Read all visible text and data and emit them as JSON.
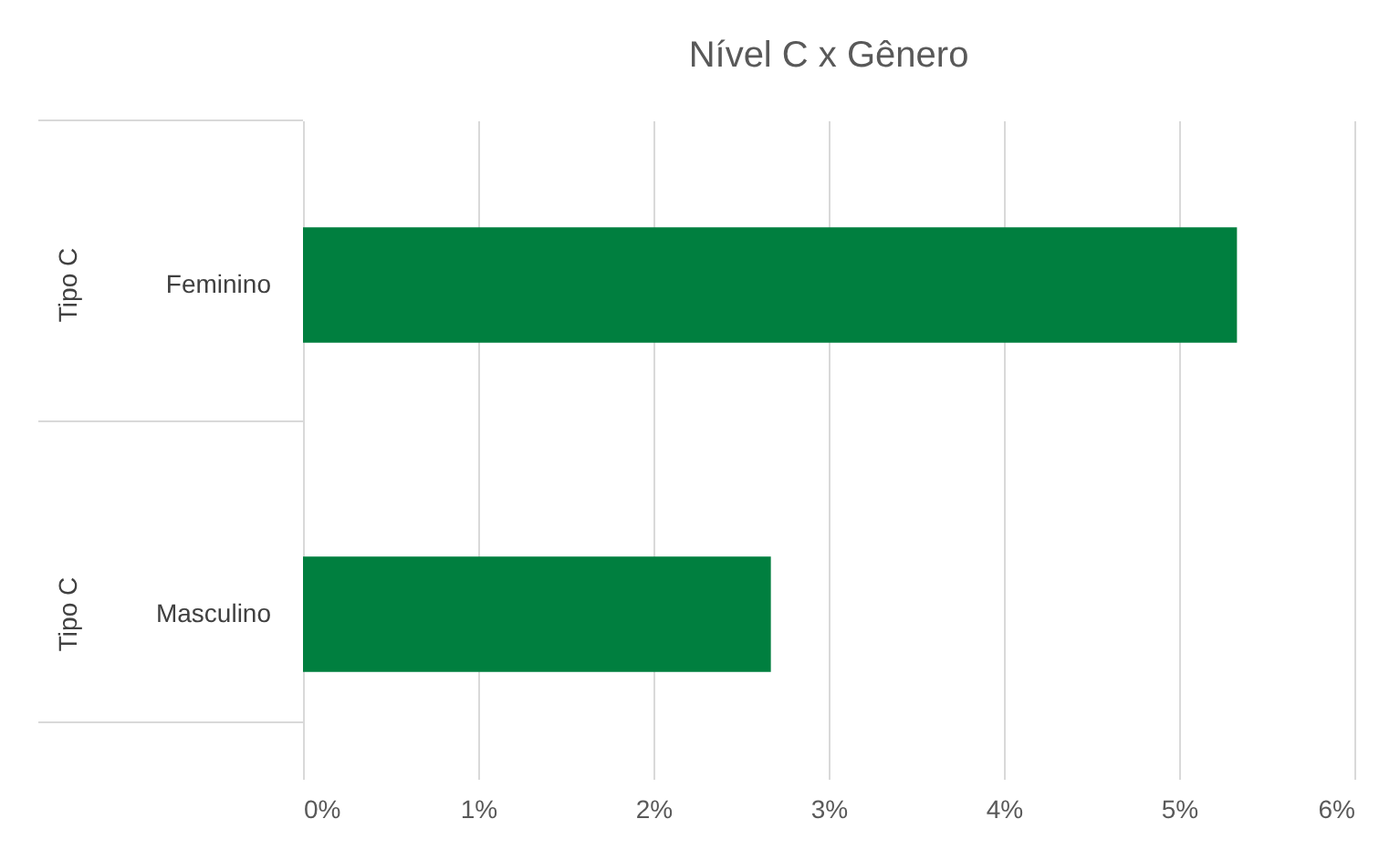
{
  "chart_data": {
    "type": "bar",
    "title": "Nível C x Gênero",
    "orientation": "horizontal",
    "categories": [
      "Feminino",
      "Masculino"
    ],
    "annotations": [
      "Tipo C",
      "Tipo C"
    ],
    "series": [
      {
        "color": "#007f3f",
        "values": [
          5.33,
          2.67
        ]
      }
    ],
    "xlim": [
      0,
      6
    ],
    "xticks": [
      {
        "value": 0,
        "label": "0%"
      },
      {
        "value": 1,
        "label": "1%"
      },
      {
        "value": 2,
        "label": "2%"
      },
      {
        "value": 3,
        "label": "3%"
      },
      {
        "value": 4,
        "label": "4%"
      },
      {
        "value": 5,
        "label": "5%"
      },
      {
        "value": 6,
        "label": "6%"
      }
    ],
    "grid": "x"
  }
}
